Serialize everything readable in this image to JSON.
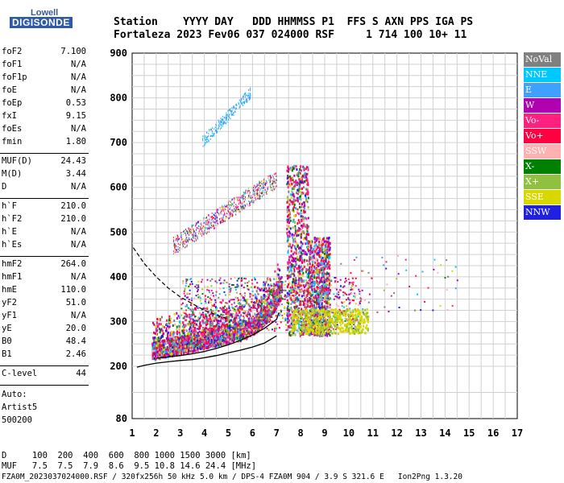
{
  "logo": {
    "line1": "Lowell",
    "line2": "DIGISONDE"
  },
  "header": {
    "line1": "Station    YYYY DAY   DDD HHMMSS P1  FFS S AXN PPS IGA PS",
    "line2": "Fortaleza 2023 Fev06 037 024000 RSF     1 714 100 10+ 11"
  },
  "params": [
    {
      "label": "foF2",
      "value": "7.100"
    },
    {
      "label": "foF1",
      "value": "N/A"
    },
    {
      "label": "foF1p",
      "value": "N/A"
    },
    {
      "label": "foE",
      "value": "N/A"
    },
    {
      "label": "foEp",
      "value": "0.53"
    },
    {
      "label": "fxI",
      "value": "9.15"
    },
    {
      "label": "foEs",
      "value": "N/A"
    },
    {
      "label": "fmin",
      "value": "1.80"
    },
    {
      "label": "MUF(D)",
      "value": "24.43"
    },
    {
      "label": "M(D)",
      "value": "3.44"
    },
    {
      "label": "D",
      "value": "N/A"
    },
    {
      "label": "h`F",
      "value": "210.0"
    },
    {
      "label": "h`F2",
      "value": "210.0"
    },
    {
      "label": "h`E",
      "value": "N/A"
    },
    {
      "label": "h`Es",
      "value": "N/A"
    },
    {
      "label": "hmF2",
      "value": "264.0"
    },
    {
      "label": "hmF1",
      "value": "N/A"
    },
    {
      "label": "hmE",
      "value": "110.0"
    },
    {
      "label": "yF2",
      "value": "51.0"
    },
    {
      "label": "yF1",
      "value": "N/A"
    },
    {
      "label": "yE",
      "value": "20.0"
    },
    {
      "label": "B0",
      "value": "48.4"
    },
    {
      "label": "B1",
      "value": "2.46"
    },
    {
      "label": "C-level",
      "value": "44"
    }
  ],
  "auto": {
    "line1": "Auto:",
    "line2": "Artist5",
    "line3": "500200"
  },
  "legend": [
    {
      "label": "NoVal",
      "color": "#808080"
    },
    {
      "label": "NNE",
      "color": "#00c8ff"
    },
    {
      "label": "E",
      "color": "#40a0ff"
    },
    {
      "label": "W",
      "color": "#b000b0"
    },
    {
      "label": "Vo-",
      "color": "#ff2080"
    },
    {
      "label": "Vo+",
      "color": "#ff0040"
    },
    {
      "label": "SSW",
      "color": "#ffb0b0"
    },
    {
      "label": "X-",
      "color": "#008000"
    },
    {
      "label": "X+",
      "color": "#90c040"
    },
    {
      "label": "SSE",
      "color": "#d8d800"
    },
    {
      "label": "NNW",
      "color": "#2020e0"
    }
  ],
  "footer": {
    "line1": "D     100  200  400  600  800 1000 1500 3000 [km]",
    "line2": "MUF   7.5  7.5  7.9  8.6  9.5 10.8 14.6 24.4 [MHz]",
    "line3": "FZA0M_2023037024000.RSF / 320fx256h 50 kHz 5.0 km / DPS-4 FZA0M 904 / 3.9 S 321.6 E   Ion2Png 1.3.20"
  },
  "chart_data": {
    "type": "scatter",
    "xlim": [
      1,
      17
    ],
    "ylim": [
      80,
      900
    ],
    "y_tick_start": 200,
    "x_ticks": [
      "1",
      "2",
      "3",
      "4",
      "5",
      "6",
      "7",
      "8",
      "9",
      "10",
      "11",
      "12",
      "13",
      "14",
      "15",
      "16",
      "17"
    ],
    "y_ticks": [
      "80",
      "200",
      "300",
      "400",
      "500",
      "600",
      "700",
      "800",
      "900"
    ],
    "grid": true,
    "profile_dashed": {
      "x": [
        1.05,
        1.5,
        2.0,
        2.5,
        3.0,
        3.5,
        4.0,
        4.5,
        5.0
      ],
      "y": [
        465,
        430,
        400,
        375,
        355,
        340,
        325,
        315,
        305
      ]
    },
    "profile_solid": {
      "x": [
        1.2,
        1.5,
        2.0,
        2.5,
        3.0,
        3.5,
        4.0,
        4.5,
        5.0,
        5.5,
        6.0,
        6.5,
        7.0
      ],
      "y": [
        198,
        202,
        207,
        210,
        213,
        215,
        219,
        224,
        230,
        236,
        243,
        252,
        268
      ]
    },
    "trace_line": {
      "x": [
        2.0,
        2.5,
        3.0,
        3.5,
        4.0,
        4.5,
        5.0,
        5.5,
        6.0,
        6.5,
        7.0,
        7.1
      ],
      "y": [
        218,
        221,
        224,
        228,
        233,
        240,
        248,
        258,
        270,
        285,
        305,
        320
      ]
    }
  }
}
